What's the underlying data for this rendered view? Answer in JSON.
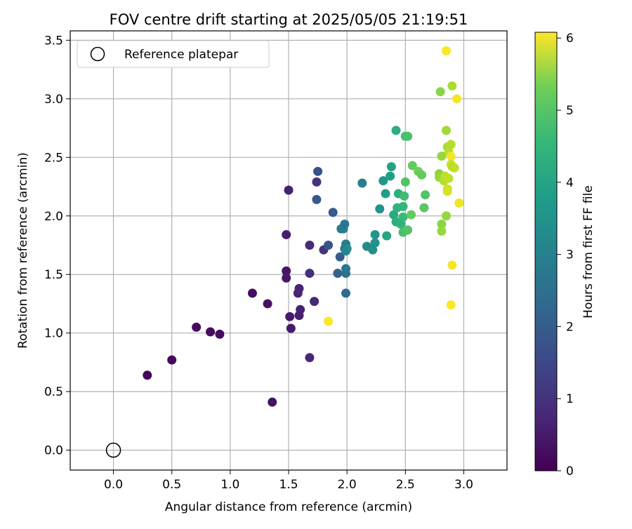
{
  "chart_data": {
    "type": "scatter",
    "title": "FOV centre drift starting at 2025/05/05 21:19:51",
    "xlabel": "Angular distance from reference (arcmin)",
    "ylabel": "Rotation from reference (arcmin)",
    "xlim": [
      -0.37,
      3.37
    ],
    "ylim": [
      -0.17,
      3.58
    ],
    "xticks": [
      "0.0",
      "0.5",
      "1.0",
      "1.5",
      "2.0",
      "2.5",
      "3.0"
    ],
    "yticks": [
      "0.0",
      "0.5",
      "1.0",
      "1.5",
      "2.0",
      "2.5",
      "3.0",
      "3.5"
    ],
    "grid": true,
    "legend": {
      "location": "top-left",
      "entries": [
        "Reference platepar"
      ]
    },
    "reference_point": {
      "x": 0.0,
      "y": 0.0,
      "label": "Reference platepar"
    },
    "colorbar": {
      "label": "Hours from first FF file",
      "range": [
        0,
        6.08
      ],
      "ticks": [
        "0",
        "1",
        "2",
        "3",
        "4",
        "5",
        "6"
      ],
      "colormap": "viridis"
    },
    "points": [
      {
        "x": 0.29,
        "y": 0.64,
        "h": 0.1
      },
      {
        "x": 0.5,
        "y": 0.77,
        "h": 0.12
      },
      {
        "x": 0.71,
        "y": 1.05,
        "h": 0.15
      },
      {
        "x": 0.83,
        "y": 1.01,
        "h": 0.18
      },
      {
        "x": 0.91,
        "y": 0.99,
        "h": 0.2
      },
      {
        "x": 1.19,
        "y": 1.34,
        "h": 0.25
      },
      {
        "x": 1.32,
        "y": 1.25,
        "h": 0.28
      },
      {
        "x": 1.36,
        "y": 0.41,
        "h": 0.3
      },
      {
        "x": 1.48,
        "y": 1.53,
        "h": 0.35
      },
      {
        "x": 1.48,
        "y": 1.47,
        "h": 0.38
      },
      {
        "x": 1.48,
        "y": 1.84,
        "h": 0.5
      },
      {
        "x": 1.5,
        "y": 2.22,
        "h": 0.55
      },
      {
        "x": 1.51,
        "y": 1.14,
        "h": 0.45
      },
      {
        "x": 1.52,
        "y": 1.04,
        "h": 0.42
      },
      {
        "x": 1.58,
        "y": 1.34,
        "h": 0.6
      },
      {
        "x": 1.59,
        "y": 1.38,
        "h": 0.62
      },
      {
        "x": 1.59,
        "y": 1.15,
        "h": 0.5
      },
      {
        "x": 1.6,
        "y": 1.2,
        "h": 0.58
      },
      {
        "x": 1.68,
        "y": 0.79,
        "h": 0.7
      },
      {
        "x": 1.68,
        "y": 1.51,
        "h": 0.8
      },
      {
        "x": 1.68,
        "y": 1.75,
        "h": 0.75
      },
      {
        "x": 1.72,
        "y": 1.27,
        "h": 0.68
      },
      {
        "x": 1.74,
        "y": 2.29,
        "h": 0.85
      },
      {
        "x": 1.75,
        "y": 2.38,
        "h": 1.5
      },
      {
        "x": 1.74,
        "y": 2.14,
        "h": 1.7
      },
      {
        "x": 1.8,
        "y": 1.71,
        "h": 0.9
      },
      {
        "x": 1.84,
        "y": 1.75,
        "h": 1.6
      },
      {
        "x": 1.88,
        "y": 2.03,
        "h": 1.7
      },
      {
        "x": 1.92,
        "y": 1.51,
        "h": 1.9
      },
      {
        "x": 1.94,
        "y": 1.65,
        "h": 1.8
      },
      {
        "x": 1.95,
        "y": 1.89,
        "h": 2.5
      },
      {
        "x": 1.97,
        "y": 1.89,
        "h": 2.6
      },
      {
        "x": 1.98,
        "y": 1.93,
        "h": 2.4
      },
      {
        "x": 1.98,
        "y": 1.72,
        "h": 2.3
      },
      {
        "x": 1.99,
        "y": 1.76,
        "h": 2.5
      },
      {
        "x": 1.99,
        "y": 1.7,
        "h": 2.8
      },
      {
        "x": 2.0,
        "y": 1.72,
        "h": 2.85
      },
      {
        "x": 1.99,
        "y": 1.51,
        "h": 2.2
      },
      {
        "x": 1.99,
        "y": 1.55,
        "h": 2.4
      },
      {
        "x": 1.99,
        "y": 1.34,
        "h": 2.1
      },
      {
        "x": 2.13,
        "y": 2.28,
        "h": 2.6
      },
      {
        "x": 2.17,
        "y": 1.74,
        "h": 2.9
      },
      {
        "x": 2.22,
        "y": 1.71,
        "h": 3.0
      },
      {
        "x": 2.24,
        "y": 1.77,
        "h": 3.1
      },
      {
        "x": 2.24,
        "y": 1.84,
        "h": 3.2
      },
      {
        "x": 2.28,
        "y": 2.06,
        "h": 3.1
      },
      {
        "x": 2.31,
        "y": 2.3,
        "h": 3.2
      },
      {
        "x": 2.33,
        "y": 2.19,
        "h": 3.4
      },
      {
        "x": 2.34,
        "y": 1.83,
        "h": 3.6
      },
      {
        "x": 2.37,
        "y": 2.34,
        "h": 3.4
      },
      {
        "x": 2.38,
        "y": 2.42,
        "h": 3.5
      },
      {
        "x": 2.4,
        "y": 2.01,
        "h": 3.7
      },
      {
        "x": 2.42,
        "y": 1.95,
        "h": 3.8
      },
      {
        "x": 2.43,
        "y": 2.07,
        "h": 3.9
      },
      {
        "x": 2.44,
        "y": 2.19,
        "h": 3.8
      },
      {
        "x": 2.46,
        "y": 1.93,
        "h": 3.9
      },
      {
        "x": 2.48,
        "y": 2.08,
        "h": 4.0
      },
      {
        "x": 2.48,
        "y": 1.99,
        "h": 4.1
      },
      {
        "x": 2.48,
        "y": 1.86,
        "h": 4.3
      },
      {
        "x": 2.49,
        "y": 2.17,
        "h": 4.2
      },
      {
        "x": 2.5,
        "y": 2.29,
        "h": 4.4
      },
      {
        "x": 2.42,
        "y": 2.73,
        "h": 3.8
      },
      {
        "x": 2.5,
        "y": 2.68,
        "h": 4.2
      },
      {
        "x": 2.52,
        "y": 2.68,
        "h": 4.3
      },
      {
        "x": 2.52,
        "y": 1.88,
        "h": 4.4
      },
      {
        "x": 2.55,
        "y": 2.01,
        "h": 4.6
      },
      {
        "x": 2.56,
        "y": 2.43,
        "h": 4.6
      },
      {
        "x": 2.61,
        "y": 2.38,
        "h": 4.7
      },
      {
        "x": 2.64,
        "y": 2.35,
        "h": 4.6
      },
      {
        "x": 2.66,
        "y": 2.07,
        "h": 4.5
      },
      {
        "x": 2.67,
        "y": 2.18,
        "h": 4.4
      },
      {
        "x": 2.79,
        "y": 2.36,
        "h": 5.0
      },
      {
        "x": 2.79,
        "y": 2.33,
        "h": 5.1
      },
      {
        "x": 2.8,
        "y": 3.06,
        "h": 5.0
      },
      {
        "x": 2.81,
        "y": 2.51,
        "h": 5.1
      },
      {
        "x": 2.81,
        "y": 1.93,
        "h": 5.0
      },
      {
        "x": 2.81,
        "y": 1.87,
        "h": 5.1
      },
      {
        "x": 2.83,
        "y": 2.3,
        "h": 5.4
      },
      {
        "x": 2.84,
        "y": 2.34,
        "h": 5.5
      },
      {
        "x": 2.85,
        "y": 2.0,
        "h": 5.1
      },
      {
        "x": 2.85,
        "y": 2.73,
        "h": 5.2
      },
      {
        "x": 2.86,
        "y": 2.59,
        "h": 5.3
      },
      {
        "x": 2.86,
        "y": 2.23,
        "h": 5.6
      },
      {
        "x": 2.86,
        "y": 2.21,
        "h": 5.7
      },
      {
        "x": 2.87,
        "y": 2.55,
        "h": 5.4
      },
      {
        "x": 2.87,
        "y": 2.32,
        "h": 5.5
      },
      {
        "x": 2.89,
        "y": 2.61,
        "h": 5.4
      },
      {
        "x": 2.89,
        "y": 2.51,
        "h": 6.0
      },
      {
        "x": 2.89,
        "y": 2.44,
        "h": 5.6
      },
      {
        "x": 2.9,
        "y": 2.42,
        "h": 5.4
      },
      {
        "x": 2.9,
        "y": 3.11,
        "h": 5.3
      },
      {
        "x": 2.92,
        "y": 2.41,
        "h": 5.5
      },
      {
        "x": 2.85,
        "y": 3.41,
        "h": 6.05
      },
      {
        "x": 2.94,
        "y": 3.0,
        "h": 6.0
      },
      {
        "x": 2.96,
        "y": 2.11,
        "h": 5.9
      },
      {
        "x": 2.9,
        "y": 1.58,
        "h": 6.0
      },
      {
        "x": 2.89,
        "y": 1.24,
        "h": 6.05
      },
      {
        "x": 1.84,
        "y": 1.1,
        "h": 6.05
      }
    ]
  }
}
